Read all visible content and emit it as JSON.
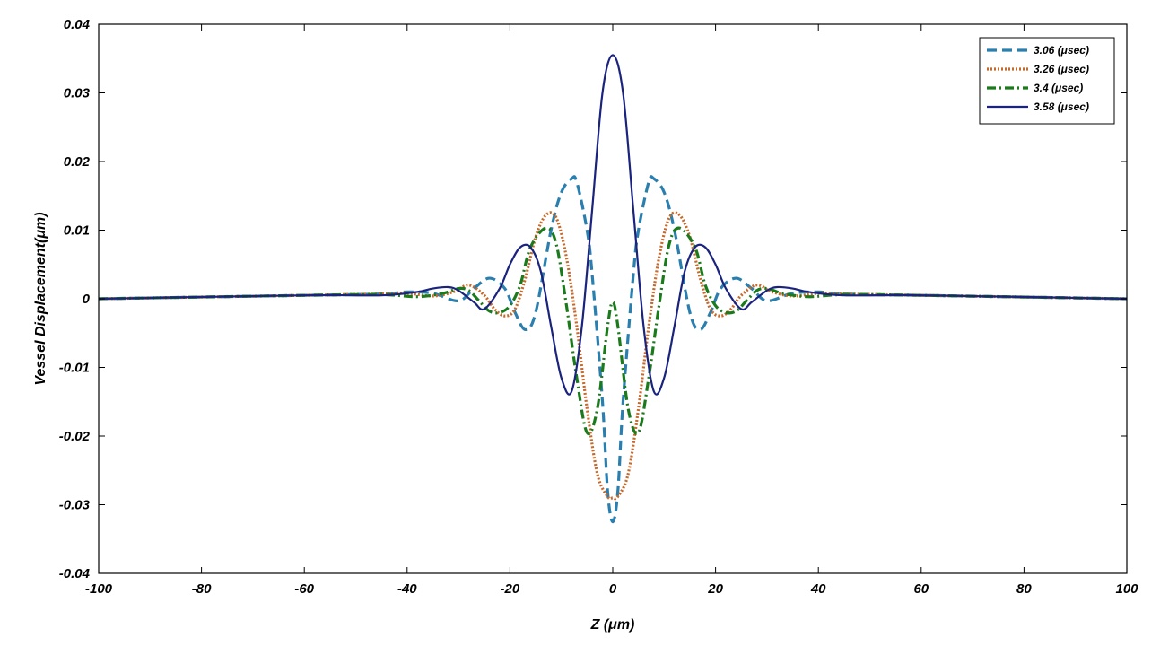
{
  "chart_data": {
    "type": "line",
    "title": "",
    "xlabel": "Z (μm)",
    "ylabel": "Vessel Displacement(μm)",
    "xlim": [
      -100,
      100
    ],
    "ylim": [
      -0.04,
      0.04
    ],
    "xticks": [
      "-100",
      "-80",
      "-60",
      "-40",
      "-20",
      "0",
      "20",
      "40",
      "60",
      "80",
      "100"
    ],
    "yticks": [
      "0.04",
      "0.03",
      "0.02",
      "0.01",
      "0",
      "-0.01",
      "-0.02",
      "-0.03",
      "-0.04"
    ],
    "grid": false,
    "legend_position": "top-right",
    "series": [
      {
        "name": "3.06 (μsec)",
        "color": "#2a7fae",
        "style": "dashed",
        "x": [
          -100,
          -60,
          -45,
          -40,
          -35,
          -30,
          -27,
          -24,
          -21,
          -19,
          -17,
          -15,
          -12,
          -10,
          -8,
          -7,
          -5,
          -4,
          -2,
          -1,
          0,
          1,
          2,
          4,
          5,
          7,
          8,
          10,
          12,
          15,
          17,
          19,
          21,
          24,
          27,
          30,
          35,
          40,
          45,
          60,
          100
        ],
        "y": [
          0,
          0.0005,
          0.0007,
          0.001,
          0.0008,
          -0.0003,
          0.0015,
          0.003,
          0.0015,
          -0.002,
          -0.0045,
          -0.002,
          0.01,
          0.0155,
          0.0175,
          0.017,
          0.01,
          0.0035,
          -0.015,
          -0.028,
          -0.0325,
          -0.028,
          -0.015,
          0.0035,
          0.01,
          0.017,
          0.0175,
          0.0155,
          0.01,
          -0.002,
          -0.0045,
          -0.002,
          0.0015,
          0.003,
          0.0015,
          -0.0003,
          0.0008,
          0.001,
          0.0007,
          0.0005,
          0
        ]
      },
      {
        "name": "3.26 (μsec)",
        "color": "#c8692a",
        "style": "dotted",
        "x": [
          -100,
          -60,
          -45,
          -40,
          -35,
          -31,
          -28,
          -25,
          -23,
          -21,
          -19,
          -17,
          -15,
          -13,
          -11,
          -9,
          -7,
          -5,
          -3,
          -1,
          0,
          1,
          3,
          5,
          7,
          9,
          11,
          13,
          15,
          17,
          19,
          21,
          23,
          25,
          28,
          31,
          35,
          40,
          45,
          60,
          100
        ],
        "y": [
          0,
          0.0005,
          0.0007,
          0.0008,
          0.0004,
          0.001,
          0.002,
          0.0005,
          -0.0015,
          -0.0025,
          -0.0015,
          0.003,
          0.009,
          0.0122,
          0.0118,
          0.006,
          -0.004,
          -0.016,
          -0.0255,
          -0.0288,
          -0.029,
          -0.0288,
          -0.0255,
          -0.016,
          -0.004,
          0.006,
          0.0118,
          0.0122,
          0.009,
          0.003,
          -0.0015,
          -0.0025,
          -0.0015,
          0.0005,
          0.002,
          0.001,
          0.0004,
          0.0008,
          0.0007,
          0.0005,
          0
        ]
      },
      {
        "name": "3.4 (μsec)",
        "color": "#1b7a1b",
        "style": "dashdot",
        "x": [
          -100,
          -60,
          -45,
          -38,
          -33,
          -30,
          -28,
          -26,
          -24,
          -22,
          -20,
          -18,
          -16,
          -13,
          -11,
          -9,
          -7,
          -5,
          -3,
          -1,
          0,
          1,
          3,
          5,
          7,
          9,
          11,
          13,
          16,
          18,
          20,
          22,
          24,
          26,
          28,
          30,
          33,
          38,
          45,
          60,
          100
        ],
        "y": [
          0,
          0.0005,
          0.0006,
          0.0003,
          0.0008,
          0.0015,
          0.0012,
          -0.0003,
          -0.0018,
          -0.002,
          -0.001,
          0.002,
          0.0075,
          0.0103,
          0.008,
          -0.001,
          -0.0115,
          -0.0195,
          -0.016,
          -0.004,
          -0.0005,
          -0.004,
          -0.016,
          -0.0195,
          -0.0115,
          -0.001,
          0.008,
          0.0103,
          0.0075,
          0.002,
          -0.001,
          -0.002,
          -0.0018,
          -0.0003,
          0.0012,
          0.0015,
          0.0008,
          0.0003,
          0.0006,
          0.0005,
          0
        ]
      },
      {
        "name": "3.58 (μsec)",
        "color": "#1a237e",
        "style": "solid",
        "x": [
          -100,
          -60,
          -45,
          -38,
          -35,
          -32,
          -30,
          -27,
          -25,
          -22,
          -20,
          -18,
          -16,
          -14,
          -12,
          -10,
          -8,
          -6,
          -4,
          -2,
          0,
          2,
          4,
          6,
          8,
          10,
          12,
          14,
          16,
          18,
          20,
          22,
          25,
          27,
          30,
          32,
          35,
          38,
          45,
          60,
          100
        ],
        "y": [
          0,
          0.0005,
          0.0005,
          0.001,
          0.0015,
          0.0017,
          0.0012,
          -0.0005,
          -0.0015,
          0.0015,
          0.005,
          0.0075,
          0.0075,
          0.004,
          -0.004,
          -0.0115,
          -0.0135,
          -0.004,
          0.013,
          0.03,
          0.0355,
          0.03,
          0.013,
          -0.004,
          -0.0135,
          -0.0115,
          -0.004,
          0.004,
          0.0075,
          0.0075,
          0.005,
          0.0015,
          -0.0015,
          -0.0005,
          0.0012,
          0.0017,
          0.0015,
          0.001,
          0.0005,
          0.0005,
          0
        ]
      }
    ]
  }
}
